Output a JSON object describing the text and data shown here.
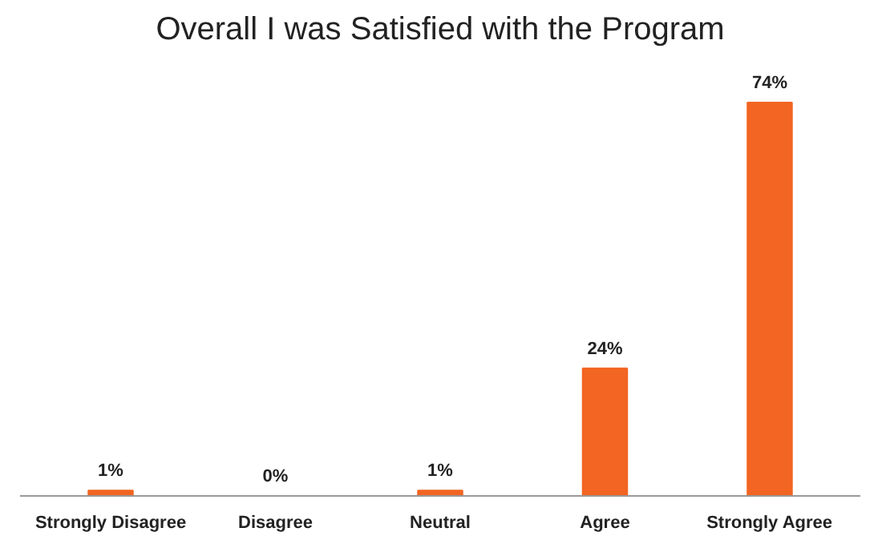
{
  "chart_data": {
    "type": "bar",
    "title": "Overall I was Satisfied with the Program",
    "categories": [
      "Strongly Disagree",
      "Disagree",
      "Neutral",
      "Agree",
      "Strongly Agree"
    ],
    "values": [
      1,
      0,
      1,
      24,
      74
    ],
    "value_labels": [
      "1%",
      "0%",
      "1%",
      "24%",
      "74%"
    ],
    "color": "#f26522",
    "grid": false
  }
}
